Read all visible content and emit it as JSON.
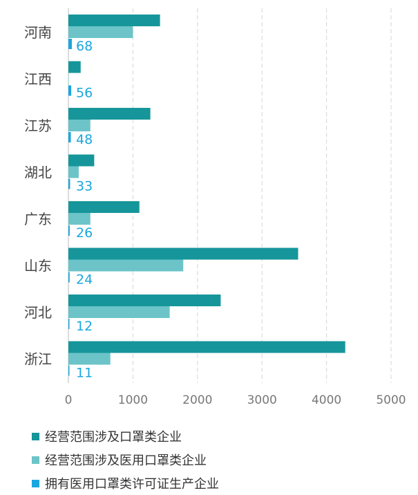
{
  "chart_data": {
    "type": "bar",
    "orientation": "horizontal",
    "categories": [
      "河南",
      "江西",
      "江苏",
      "湖北",
      "广东",
      "山东",
      "河北",
      "浙江"
    ],
    "series": [
      {
        "name": "经营范围涉及口罩类企业",
        "color": "#16969a",
        "values": [
          1420,
          190,
          1270,
          400,
          1100,
          3560,
          2360,
          4290
        ]
      },
      {
        "name": "经营范围涉及医用口罩类企业",
        "color": "#6cc4c8",
        "values": [
          1000,
          5,
          340,
          160,
          340,
          1780,
          1570,
          650
        ]
      },
      {
        "name": "拥有医用口罩类许可证生产企业",
        "color": "#1aa7df",
        "values": [
          68,
          56,
          48,
          33,
          26,
          24,
          12,
          11
        ]
      }
    ],
    "data_labels": [
      "68",
      "56",
      "48",
      "33",
      "26",
      "24",
      "12",
      "11"
    ],
    "data_label_color": "#1aa7df",
    "xlim": [
      0,
      5000
    ],
    "xticks": [
      "0",
      "1000",
      "2000",
      "3000",
      "4000",
      "5000"
    ],
    "grid": "vertical dashed",
    "legend_position": "bottom"
  }
}
